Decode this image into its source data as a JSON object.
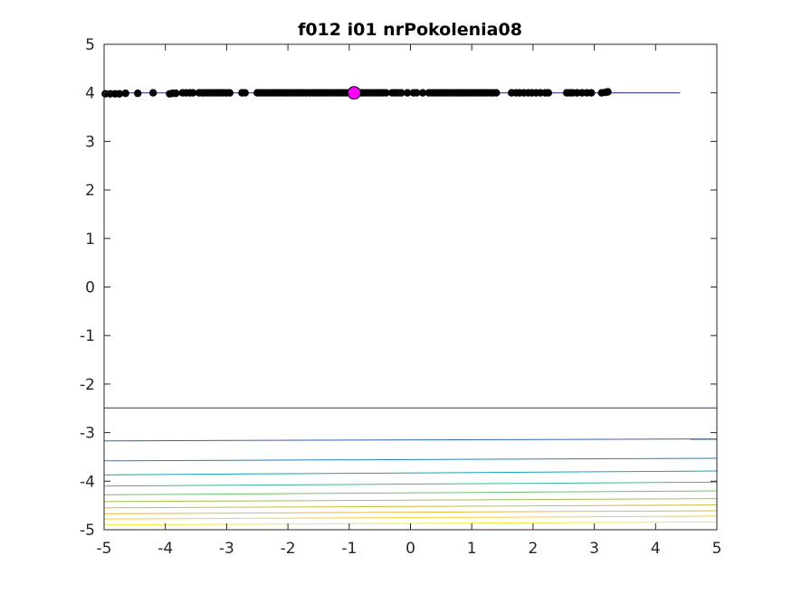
{
  "chart_data": {
    "type": "scatter",
    "title": "f012 i01 nrPokolenia08",
    "xlabel": "",
    "ylabel": "",
    "xlim": [
      -5,
      5
    ],
    "ylim": [
      -5,
      5
    ],
    "xticks": [
      -5,
      -4,
      -3,
      -2,
      -1,
      0,
      1,
      2,
      3,
      4,
      5
    ],
    "yticks": [
      -5,
      -4,
      -3,
      -2,
      -1,
      0,
      1,
      2,
      3,
      4,
      5
    ],
    "grid": false,
    "contour_levels": [
      {
        "y0": -2.49,
        "y1": -2.49,
        "color": "#3b2b8f"
      },
      {
        "y0": -3.17,
        "y1": -3.13,
        "color": "#2f62b2"
      },
      {
        "y0": -3.58,
        "y1": -3.53,
        "color": "#1f82c4"
      },
      {
        "y0": -3.87,
        "y1": -3.79,
        "color": "#13a3b8"
      },
      {
        "y0": -4.1,
        "y1": -4.02,
        "color": "#3bb59a"
      },
      {
        "y0": -4.28,
        "y1": -4.2,
        "color": "#6fbf72"
      },
      {
        "y0": -4.42,
        "y1": -4.36,
        "color": "#a1c14e"
      },
      {
        "y0": -4.55,
        "y1": -4.49,
        "color": "#c9bd3a"
      },
      {
        "y0": -4.67,
        "y1": -4.61,
        "color": "#e9b93a"
      },
      {
        "y0": -4.78,
        "y1": -4.72,
        "color": "#f8cf3a"
      },
      {
        "y0": -4.9,
        "y1": -4.84,
        "color": "#f9e838"
      }
    ],
    "series": [
      {
        "x": [
          -4.98,
          -4.9,
          -4.82,
          -4.75,
          -4.65,
          -4.45,
          -4.2,
          -3.93,
          -3.88,
          -3.83,
          -3.72,
          -3.66,
          -3.6,
          -3.55,
          -3.45,
          -3.4,
          -3.35,
          -3.3,
          -3.25,
          -3.2,
          -3.15,
          -3.1,
          -3.05,
          -3.0,
          -2.95,
          -2.75,
          -2.7,
          -2.5,
          -2.45,
          -2.4,
          -2.35,
          -2.3,
          -2.25,
          -2.2,
          -2.15,
          -2.1,
          -2.05,
          -2.0,
          -1.95,
          -1.9,
          -1.85,
          -1.8,
          -1.75,
          -1.7,
          -1.65,
          -1.6,
          -1.55,
          -1.5,
          -1.45,
          -1.4,
          -1.35,
          -1.3,
          -1.25,
          -1.2,
          -1.15,
          -1.1,
          -1.05,
          -1.0,
          -0.95,
          -0.85,
          -0.8,
          -0.75,
          -0.7,
          -0.65,
          -0.6,
          -0.55,
          -0.5,
          -0.45,
          -0.4,
          -0.3,
          -0.25,
          -0.2,
          -0.15,
          -0.05,
          0.05,
          0.1,
          0.2,
          0.3,
          0.35,
          0.4,
          0.45,
          0.5,
          0.55,
          0.6,
          0.65,
          0.7,
          0.75,
          0.8,
          0.85,
          0.9,
          0.95,
          1.0,
          1.05,
          1.1,
          1.15,
          1.2,
          1.25,
          1.3,
          1.35,
          1.4,
          1.65,
          1.72,
          1.78,
          1.85,
          1.92,
          1.98,
          2.05,
          2.12,
          2.2,
          2.25,
          2.55,
          2.6,
          2.65,
          2.72,
          2.8,
          2.88,
          2.95,
          3.12,
          3.18,
          3.22
        ],
        "y": [
          3.98,
          3.98,
          3.98,
          3.98,
          3.99,
          3.99,
          4.0,
          3.98,
          3.99,
          3.99,
          4.0,
          4.0,
          4.0,
          4.0,
          4.0,
          4.0,
          4.0,
          4.0,
          4.0,
          4.0,
          4.0,
          4.0,
          4.0,
          4.0,
          4.0,
          4.0,
          4.0,
          4.0,
          4.0,
          4.0,
          4.0,
          4.0,
          4.0,
          4.0,
          4.0,
          4.0,
          4.0,
          4.0,
          4.0,
          4.0,
          4.0,
          4.0,
          4.0,
          4.0,
          4.0,
          4.0,
          4.0,
          4.0,
          4.0,
          4.0,
          4.0,
          4.0,
          4.0,
          4.0,
          4.0,
          4.0,
          4.0,
          4.0,
          4.0,
          4.0,
          4.0,
          4.0,
          4.0,
          4.0,
          4.0,
          4.0,
          4.0,
          4.0,
          4.0,
          4.0,
          4.0,
          4.0,
          4.0,
          4.0,
          4.0,
          4.0,
          4.0,
          4.0,
          4.0,
          4.0,
          4.0,
          4.0,
          4.0,
          4.0,
          4.0,
          4.0,
          4.0,
          4.0,
          4.0,
          4.0,
          4.0,
          4.0,
          4.0,
          4.0,
          4.0,
          4.0,
          4.0,
          4.0,
          4.0,
          4.0,
          4.0,
          4.0,
          4.0,
          4.0,
          4.0,
          4.0,
          4.0,
          4.0,
          4.0,
          4.0,
          4.0,
          4.0,
          4.0,
          4.0,
          4.0,
          4.0,
          4.0,
          4.0,
          4.01,
          4.02
        ],
        "color": "#000000"
      },
      {
        "x": [
          -0.92
        ],
        "y": [
          4.0
        ],
        "color": "#ff00ff"
      }
    ],
    "guide_line": {
      "x": [
        -5,
        4.4
      ],
      "y": [
        4.0,
        4.0
      ]
    }
  }
}
